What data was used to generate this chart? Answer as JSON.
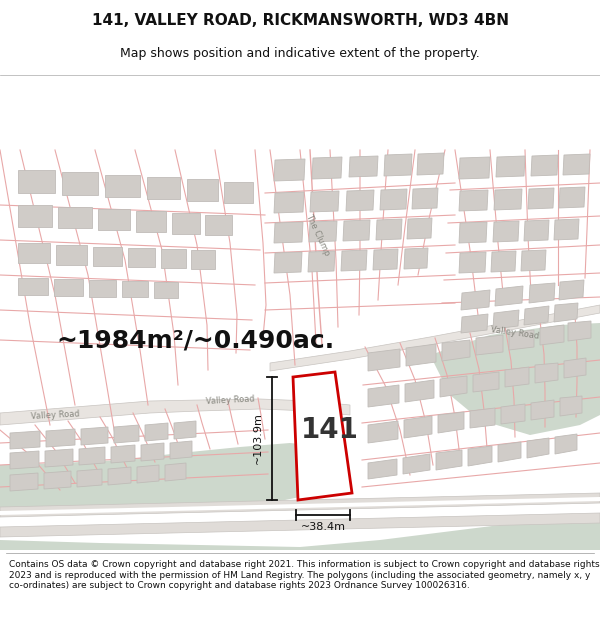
{
  "title": "141, VALLEY ROAD, RICKMANSWORTH, WD3 4BN",
  "subtitle": "Map shows position and indicative extent of the property.",
  "area_label": "~1984m²/~0.490ac.",
  "plot_number": "141",
  "dim_vertical": "~103.9m",
  "dim_horizontal": "~38.4m",
  "footer": "Contains OS data © Crown copyright and database right 2021. This information is subject to Crown copyright and database rights 2023 and is reproduced with the permission of HM Land Registry. The polygons (including the associated geometry, namely x, y co-ordinates) are subject to Crown copyright and database rights 2023 Ordnance Survey 100026316.",
  "map_bg": "#f0ede8",
  "building_color": "#d0ccc8",
  "building_outline": "#c0bcb8",
  "green_color": "#cdd8cc",
  "plot_outline": "#cc0000",
  "lot_line_color": "#e8a8a8",
  "road_color": "#e8e4e0",
  "road_outline": "#d0ccc8",
  "title_fontsize": 11,
  "subtitle_fontsize": 9,
  "footer_fontsize": 6.5,
  "area_fontsize": 18,
  "plot_number_fontsize": 20,
  "dim_fontsize": 8
}
